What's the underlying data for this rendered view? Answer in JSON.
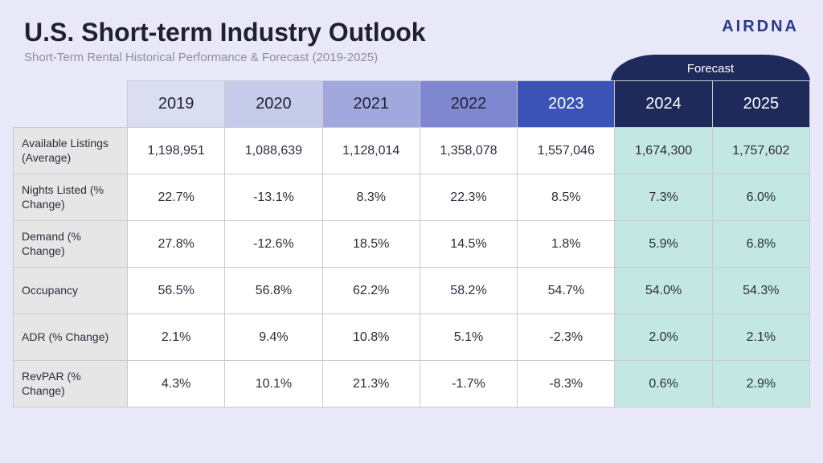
{
  "title": "U.S. Short-term Industry Outlook",
  "subtitle": "Short-Term Rental Historical Performance & Forecast (2019-2025)",
  "logo": "AIRDNA",
  "forecast_label": "Forecast",
  "table": {
    "type": "table",
    "background_color": "#e9e8f9",
    "cell_bg": "#ffffff",
    "forecast_cell_bg": "#c3e8e1",
    "row_header_bg": "#e6e6e6",
    "border_color": "#c9c9d6",
    "forecast_header_bg": "#1e2a5a",
    "forecast_header_text": "#ffffff",
    "year_header_colors": [
      "#dadef0",
      "#c6cbe9",
      "#a1a8de",
      "#7e87d0",
      "#3b53b7",
      "#1e2a5a",
      "#1e2a5a"
    ],
    "year_header_text_colors": [
      "#1f2132",
      "#1f2132",
      "#1f2132",
      "#1f2132",
      "#ffffff",
      "#ffffff",
      "#ffffff"
    ],
    "title_fontsize": 32,
    "subtitle_fontsize": 15,
    "cell_fontsize": 16,
    "year_fontsize": 20,
    "row_header_fontsize": 14,
    "columns": [
      "2019",
      "2020",
      "2021",
      "2022",
      "2023",
      "2024",
      "2025"
    ],
    "forecast_columns": [
      5,
      6
    ],
    "row_labels": [
      "Available Listings (Average)",
      "Nights Listed (% Change)",
      "Demand (% Change)",
      "Occupancy",
      "ADR (% Change)",
      "RevPAR (% Change)"
    ],
    "rows": [
      [
        "1,198,951",
        "1,088,639",
        "1,128,014",
        "1,358,078",
        "1,557,046",
        "1,674,300",
        "1,757,602"
      ],
      [
        "22.7%",
        "-13.1%",
        "8.3%",
        "22.3%",
        "8.5%",
        "7.3%",
        "6.0%"
      ],
      [
        "27.8%",
        "-12.6%",
        "18.5%",
        "14.5%",
        "1.8%",
        "5.9%",
        "6.8%"
      ],
      [
        "56.5%",
        "56.8%",
        "62.2%",
        "58.2%",
        "54.7%",
        "54.0%",
        "54.3%"
      ],
      [
        "2.1%",
        "9.4%",
        "10.8%",
        "5.1%",
        "-2.3%",
        "2.0%",
        "2.1%"
      ],
      [
        "4.3%",
        "10.1%",
        "21.3%",
        "-1.7%",
        "-8.3%",
        "0.6%",
        "2.9%"
      ]
    ]
  }
}
